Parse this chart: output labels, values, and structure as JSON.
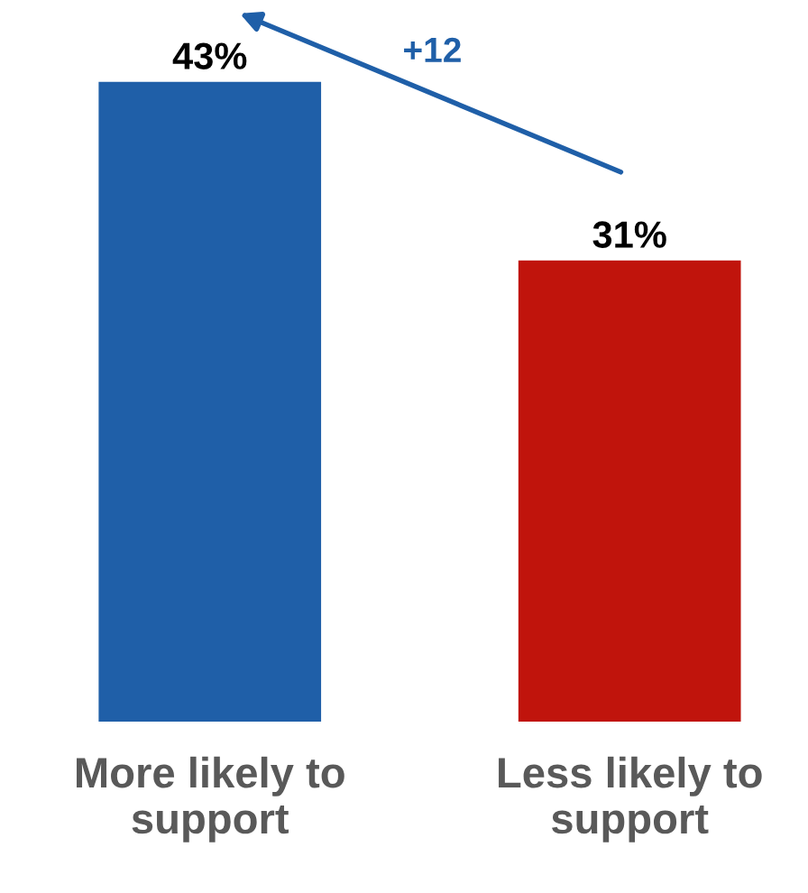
{
  "chart_data": {
    "type": "bar",
    "categories": [
      "More likely to\nsupport",
      "Less likely to\nsupport"
    ],
    "values": [
      43,
      31
    ],
    "colors": [
      "#1f5fa8",
      "#c0140c"
    ],
    "value_labels": [
      "43%",
      "31%"
    ],
    "annotations": [
      "+12"
    ],
    "grid": false,
    "legend": false
  }
}
